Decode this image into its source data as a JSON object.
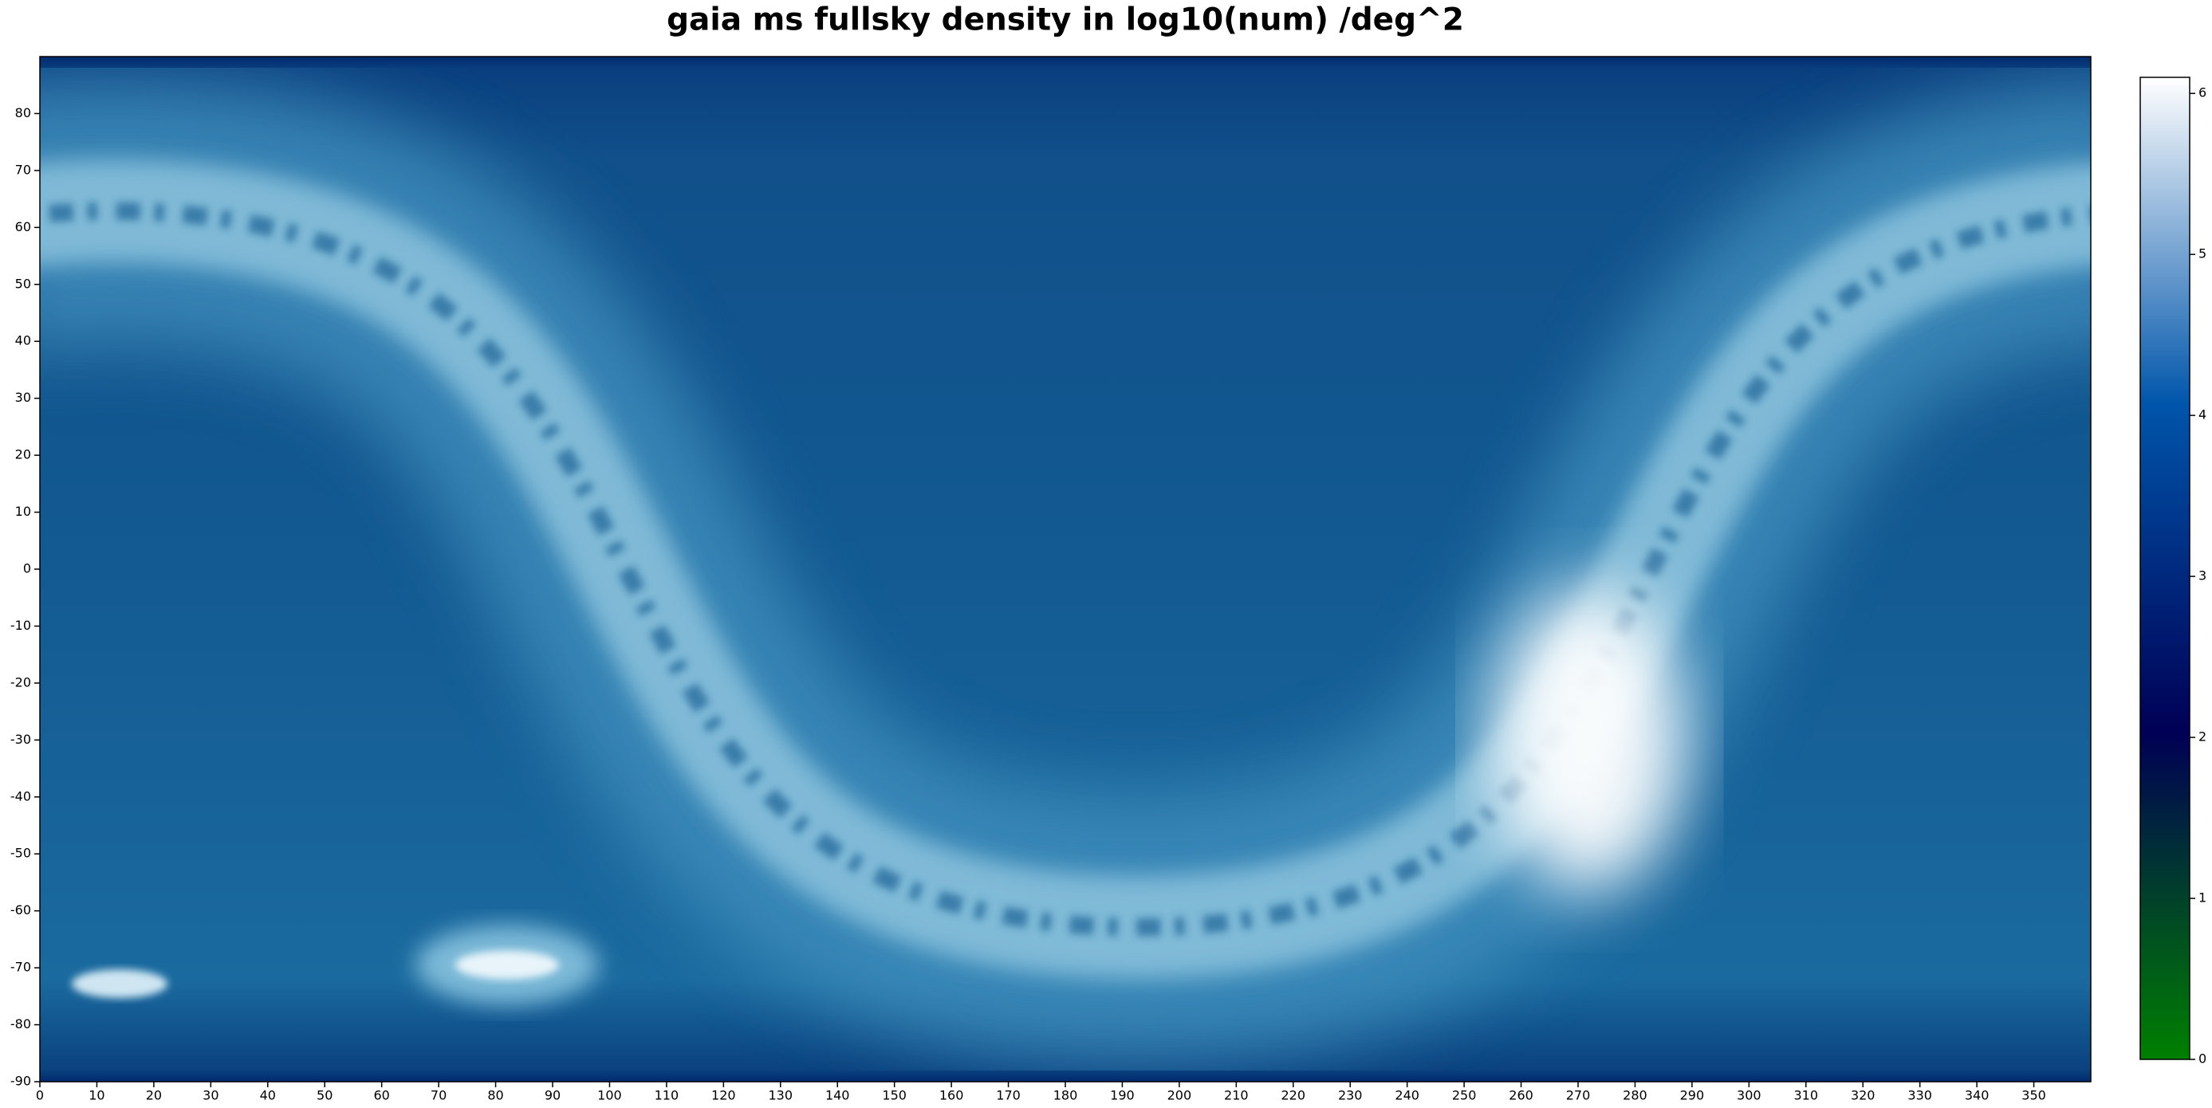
{
  "chart_data": {
    "type": "heatmap",
    "title": "gaia ms fullsky density in log10(num) /deg^2",
    "xlim": [
      0,
      360
    ],
    "xticks": [
      0,
      10,
      20,
      30,
      40,
      50,
      60,
      70,
      80,
      90,
      100,
      110,
      120,
      130,
      140,
      150,
      160,
      170,
      180,
      190,
      200,
      210,
      220,
      230,
      240,
      250,
      260,
      270,
      280,
      290,
      300,
      310,
      320,
      330,
      340,
      350
    ],
    "ylim": [
      -90,
      90
    ],
    "yticks": [
      -90,
      -80,
      -70,
      -60,
      -50,
      -40,
      -30,
      -20,
      -10,
      0,
      10,
      20,
      30,
      40,
      50,
      60,
      70,
      80
    ],
    "colormap": "ocean",
    "clim": [
      0,
      6.1
    ],
    "cticks": [
      0,
      1,
      2,
      3,
      4,
      5,
      6
    ]
  }
}
